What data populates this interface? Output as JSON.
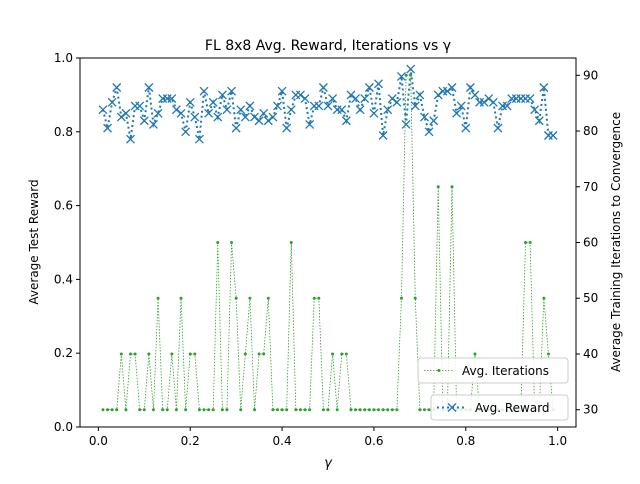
{
  "chart_data": {
    "type": "line",
    "title": "FL 8x8 Avg. Reward, Iterations vs γ",
    "xlabel": "γ",
    "ylabel_left": "Average Test Reward",
    "ylabel_right": "Average Training Iterations to Convergence",
    "xlim": [
      -0.04,
      1.04
    ],
    "ylim_left": [
      0.0,
      1.0
    ],
    "ylim_right": [
      26.9,
      93.1
    ],
    "x_ticks": [
      0.0,
      0.2,
      0.4,
      0.6,
      0.8,
      1.0
    ],
    "x_tick_labels": [
      "0.0",
      "0.2",
      "0.4",
      "0.6",
      "0.8",
      "1.0"
    ],
    "y_left_ticks": [
      0.0,
      0.2,
      0.4,
      0.6,
      0.8,
      1.0
    ],
    "y_left_tick_labels": [
      "0.0",
      "0.2",
      "0.4",
      "0.6",
      "0.8",
      "1.0"
    ],
    "y_right_ticks": [
      30,
      40,
      50,
      60,
      70,
      80,
      90
    ],
    "y_right_tick_labels": [
      "30",
      "40",
      "50",
      "60",
      "70",
      "80",
      "90"
    ],
    "grid": false,
    "x": [
      0.01,
      0.02,
      0.03,
      0.04,
      0.05,
      0.06,
      0.07,
      0.08,
      0.09,
      0.1,
      0.11,
      0.12,
      0.13,
      0.14,
      0.15,
      0.16,
      0.17,
      0.18,
      0.19,
      0.2,
      0.21,
      0.22,
      0.23,
      0.24,
      0.25,
      0.26,
      0.27,
      0.28,
      0.29,
      0.3,
      0.31,
      0.32,
      0.33,
      0.34,
      0.35,
      0.36,
      0.37,
      0.38,
      0.39,
      0.4,
      0.41,
      0.42,
      0.43,
      0.44,
      0.45,
      0.46,
      0.47,
      0.48,
      0.49,
      0.5,
      0.51,
      0.52,
      0.53,
      0.54,
      0.55,
      0.56,
      0.57,
      0.58,
      0.59,
      0.6,
      0.61,
      0.62,
      0.63,
      0.64,
      0.65,
      0.66,
      0.67,
      0.68,
      0.69,
      0.7,
      0.71,
      0.72,
      0.73,
      0.74,
      0.75,
      0.76,
      0.77,
      0.78,
      0.79,
      0.8,
      0.81,
      0.82,
      0.83,
      0.84,
      0.85,
      0.86,
      0.87,
      0.88,
      0.89,
      0.9,
      0.91,
      0.92,
      0.93,
      0.94,
      0.95,
      0.96,
      0.97,
      0.98,
      0.99
    ],
    "series": [
      {
        "name": "Avg. Reward",
        "axis": "left",
        "style": "dotted",
        "marker": "x",
        "color": "#1f77b4",
        "values": [
          0.86,
          0.81,
          0.88,
          0.92,
          0.84,
          0.85,
          0.78,
          0.87,
          0.87,
          0.83,
          0.92,
          0.82,
          0.85,
          0.89,
          0.89,
          0.89,
          0.86,
          0.85,
          0.8,
          0.88,
          0.84,
          0.78,
          0.91,
          0.85,
          0.88,
          0.84,
          0.9,
          0.86,
          0.91,
          0.81,
          0.86,
          0.84,
          0.87,
          0.84,
          0.83,
          0.85,
          0.83,
          0.84,
          0.87,
          0.91,
          0.81,
          0.86,
          0.9,
          0.9,
          0.89,
          0.82,
          0.87,
          0.87,
          0.92,
          0.87,
          0.89,
          0.86,
          0.86,
          0.83,
          0.9,
          0.89,
          0.86,
          0.89,
          0.92,
          0.85,
          0.93,
          0.79,
          0.86,
          0.89,
          0.88,
          0.95,
          0.82,
          0.97,
          0.87,
          0.9,
          0.84,
          0.8,
          0.83,
          0.9,
          0.91,
          0.91,
          0.92,
          0.85,
          0.87,
          0.81,
          0.92,
          0.9,
          0.88,
          0.88,
          0.89,
          0.88,
          0.81,
          0.87,
          0.87,
          0.89,
          0.89,
          0.89,
          0.89,
          0.89,
          0.86,
          0.83,
          0.92,
          0.79,
          0.79
        ]
      },
      {
        "name": "Avg. Iterations",
        "axis": "right",
        "style": "dotted",
        "marker": "dot",
        "color": "#2ca02c",
        "values": [
          30,
          30,
          30,
          30,
          40,
          30,
          40,
          40,
          30,
          30,
          40,
          30,
          50,
          30,
          30,
          40,
          30,
          50,
          30,
          40,
          40,
          30,
          30,
          30,
          30,
          60,
          30,
          30,
          60,
          50,
          30,
          40,
          50,
          30,
          40,
          40,
          50,
          30,
          30,
          30,
          30,
          60,
          30,
          30,
          30,
          30,
          50,
          50,
          30,
          30,
          40,
          30,
          40,
          40,
          30,
          30,
          30,
          30,
          30,
          30,
          30,
          30,
          30,
          30,
          30,
          50,
          90,
          90,
          50,
          30,
          30,
          30,
          30,
          70,
          30,
          30,
          70,
          30,
          30,
          30,
          30,
          40,
          30,
          30,
          30,
          30,
          30,
          30,
          30,
          30,
          30,
          30,
          60,
          60,
          30,
          30,
          50,
          40,
          30
        ]
      }
    ],
    "legend": [
      {
        "label": "Avg. Iterations",
        "placement": "lower-right"
      },
      {
        "label": "Avg. Reward",
        "placement": "lower-right"
      }
    ]
  }
}
